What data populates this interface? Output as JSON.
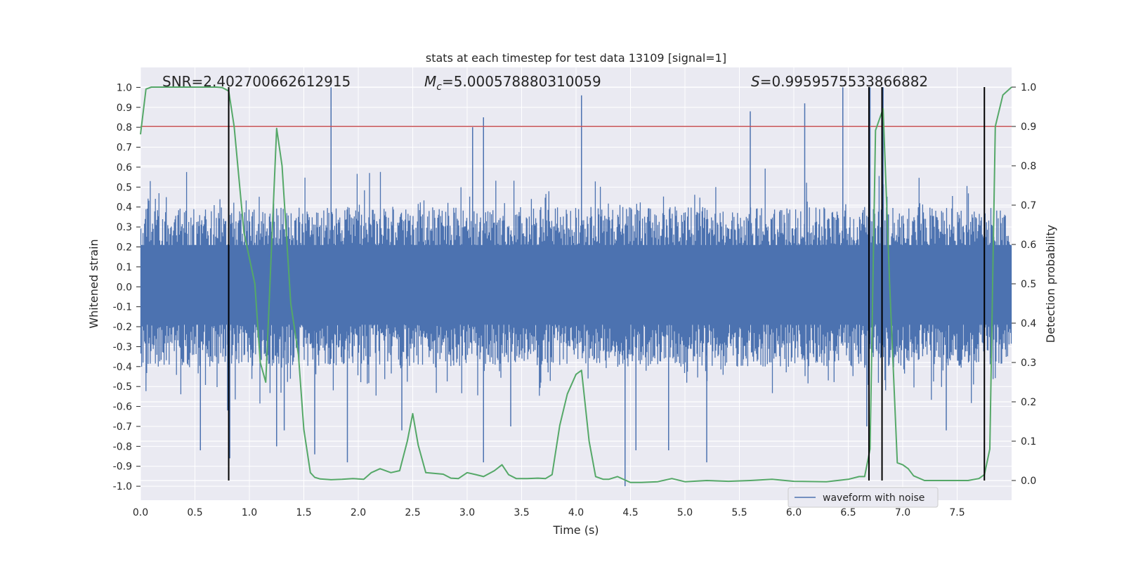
{
  "chart_data": {
    "type": "line",
    "title": "stats at each timestep for test data 13109 [signal=1]",
    "xlabel": "Time (s)",
    "ylabel_left": "Whitened strain",
    "ylabel_right": "Detection probability",
    "xlim": [
      0,
      8
    ],
    "ylim_left": [
      -1.07,
      1.1
    ],
    "ylim_right": [
      -0.05,
      1.05
    ],
    "x_ticks": [
      "0.0",
      "0.5",
      "1.0",
      "1.5",
      "2.0",
      "2.5",
      "3.0",
      "3.5",
      "4.0",
      "4.5",
      "5.0",
      "5.5",
      "6.0",
      "6.5",
      "7.0",
      "7.5"
    ],
    "y_ticks_left": [
      "-1.0",
      "-0.9",
      "-0.8",
      "-0.7",
      "-0.6",
      "-0.5",
      "-0.4",
      "-0.3",
      "-0.2",
      "-0.1",
      "0.0",
      "0.1",
      "0.2",
      "0.3",
      "0.4",
      "0.5",
      "0.6",
      "0.7",
      "0.8",
      "0.9",
      "1.0"
    ],
    "y_ticks_right": [
      "0.0",
      "0.1",
      "0.2",
      "0.3",
      "0.4",
      "0.5",
      "0.6",
      "0.7",
      "0.8",
      "0.9",
      "1.0"
    ],
    "annotations": {
      "snr": "SNR=2.402700662612915",
      "mc_symbol": "M",
      "mc_sub": "c",
      "mc_value": "=5.000578880310059",
      "s_symbol": "S",
      "s_value": "=0.9959575533866882"
    },
    "legend": [
      "waveform with noise"
    ],
    "threshold": 0.9,
    "event_lines": [
      0.81,
      6.69,
      6.81,
      7.75
    ],
    "waveform": {
      "name": "waveform with noise",
      "envelope": 0.4,
      "spikes": [
        [
          0.55,
          -0.82
        ],
        [
          0.8,
          -0.62
        ],
        [
          0.82,
          -0.86
        ],
        [
          1.25,
          -0.8
        ],
        [
          1.32,
          -0.72
        ],
        [
          1.6,
          -0.84
        ],
        [
          1.75,
          1.0
        ],
        [
          1.9,
          -0.88
        ],
        [
          2.4,
          -0.72
        ],
        [
          3.05,
          0.8
        ],
        [
          3.15,
          0.85
        ],
        [
          3.15,
          -0.88
        ],
        [
          3.4,
          -0.7
        ],
        [
          4.05,
          0.96
        ],
        [
          4.45,
          -1.0
        ],
        [
          4.55,
          -0.82
        ],
        [
          4.85,
          -0.82
        ],
        [
          5.2,
          -0.88
        ],
        [
          5.6,
          0.88
        ],
        [
          6.1,
          0.92
        ],
        [
          6.45,
          1.0
        ],
        [
          6.67,
          -0.7
        ],
        [
          6.7,
          1.0
        ],
        [
          6.82,
          1.0
        ],
        [
          7.4,
          -0.72
        ]
      ]
    },
    "probability": {
      "name": "detection probability",
      "x": [
        0.0,
        0.05,
        0.1,
        0.2,
        0.4,
        0.6,
        0.7,
        0.75,
        0.81,
        0.86,
        0.95,
        1.05,
        1.1,
        1.15,
        1.22,
        1.25,
        1.3,
        1.38,
        1.45,
        1.5,
        1.56,
        1.6,
        1.65,
        1.75,
        1.85,
        1.95,
        2.05,
        2.12,
        2.2,
        2.3,
        2.38,
        2.45,
        2.5,
        2.55,
        2.62,
        2.7,
        2.78,
        2.85,
        2.92,
        3.0,
        3.08,
        3.15,
        3.25,
        3.32,
        3.38,
        3.45,
        3.55,
        3.65,
        3.72,
        3.78,
        3.85,
        3.92,
        4.0,
        4.05,
        4.12,
        4.18,
        4.25,
        4.3,
        4.38,
        4.5,
        4.6,
        4.75,
        4.88,
        5.0,
        5.2,
        5.4,
        5.6,
        5.8,
        6.0,
        6.3,
        6.5,
        6.6,
        6.65,
        6.7,
        6.75,
        6.82,
        6.88,
        6.95,
        7.0,
        7.05,
        7.1,
        7.2,
        7.4,
        7.6,
        7.7,
        7.75,
        7.8,
        7.85,
        7.92,
        8.0
      ],
      "y": [
        0.88,
        0.995,
        1.0,
        1.0,
        1.0,
        1.0,
        1.0,
        0.999,
        0.99,
        0.9,
        0.63,
        0.5,
        0.3,
        0.25,
        0.7,
        0.895,
        0.8,
        0.45,
        0.32,
        0.13,
        0.02,
        0.008,
        0.004,
        0.002,
        0.003,
        0.005,
        0.003,
        0.02,
        0.03,
        0.02,
        0.025,
        0.1,
        0.17,
        0.09,
        0.02,
        0.018,
        0.016,
        0.006,
        0.005,
        0.02,
        0.015,
        0.01,
        0.025,
        0.04,
        0.015,
        0.005,
        0.005,
        0.006,
        0.005,
        0.015,
        0.14,
        0.22,
        0.27,
        0.28,
        0.1,
        0.01,
        0.003,
        0.003,
        0.01,
        -0.005,
        -0.005,
        -0.003,
        0.005,
        -0.003,
        0.0,
        -0.002,
        0.0,
        0.003,
        -0.002,
        -0.003,
        0.003,
        0.01,
        0.01,
        0.08,
        0.89,
        0.945,
        0.5,
        0.045,
        0.04,
        0.03,
        0.012,
        0.0,
        0.0,
        0.0,
        0.005,
        0.015,
        0.08,
        0.9,
        0.98,
        1.0
      ]
    }
  },
  "colors": {
    "background": "#eaeaf2",
    "grid": "#ffffff",
    "waveform": "#4c72b0",
    "probability": "#55a868",
    "threshold": "#c44e52",
    "event_line": "#000000"
  }
}
